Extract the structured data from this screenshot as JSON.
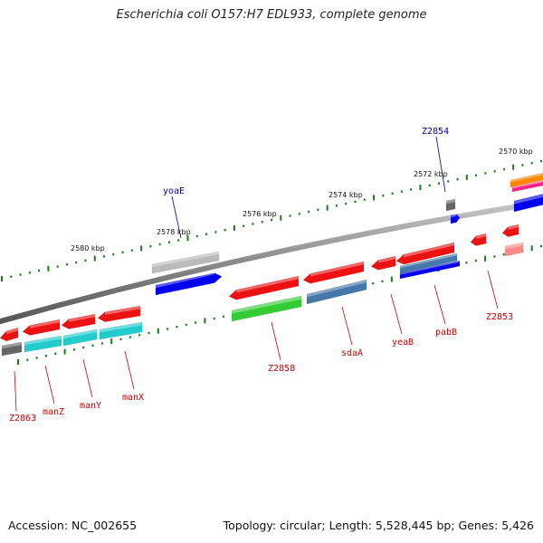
{
  "title": "Escherichia coli O157:H7 EDL933, complete genome",
  "footer": {
    "accession": "Accession: NC_002655",
    "summary": "Topology: circular; Length: 5,528,445 bp; Genes: 5,426"
  },
  "colors": {
    "backbone": "#8a8a8a",
    "tick": "#1a7a1a",
    "label_red": "#cc0000",
    "label_blue": "#0000aa",
    "red": "#ee1111",
    "blue": "#0000ee",
    "gray": "#bbbbbb",
    "darkgray": "#666666",
    "green": "#33cc33",
    "steelblue": "#4477aa",
    "cyan": "#22cccc",
    "pink": "#ff8888",
    "orange": "#ff8800",
    "magenta": "#ff2288"
  },
  "kbp_labels": [
    {
      "text": "2580 kbp",
      "ref": "kbp-2580"
    },
    {
      "text": "2578 kbp",
      "ref": "kbp-2578"
    },
    {
      "text": "2576 kbp",
      "ref": "kbp-2576"
    },
    {
      "text": "2574 kbp",
      "ref": "kbp-2574"
    },
    {
      "text": "2572 kbp",
      "ref": "kbp-2572"
    },
    {
      "text": "2570 kbp",
      "ref": "kbp-2570"
    }
  ],
  "gene_labels": [
    {
      "text": "yoaE",
      "strand": "forward"
    },
    {
      "text": "Z2854",
      "strand": "forward"
    },
    {
      "text": "Z2863",
      "strand": "reverse"
    },
    {
      "text": "manZ",
      "strand": "reverse"
    },
    {
      "text": "manY",
      "strand": "reverse"
    },
    {
      "text": "manX",
      "strand": "reverse"
    },
    {
      "text": "Z2858",
      "strand": "reverse"
    },
    {
      "text": "sdaA",
      "strand": "reverse"
    },
    {
      "text": "yeaB",
      "strand": "reverse"
    },
    {
      "text": "pabB",
      "strand": "reverse"
    },
    {
      "text": "Z2853",
      "strand": "reverse"
    }
  ]
}
